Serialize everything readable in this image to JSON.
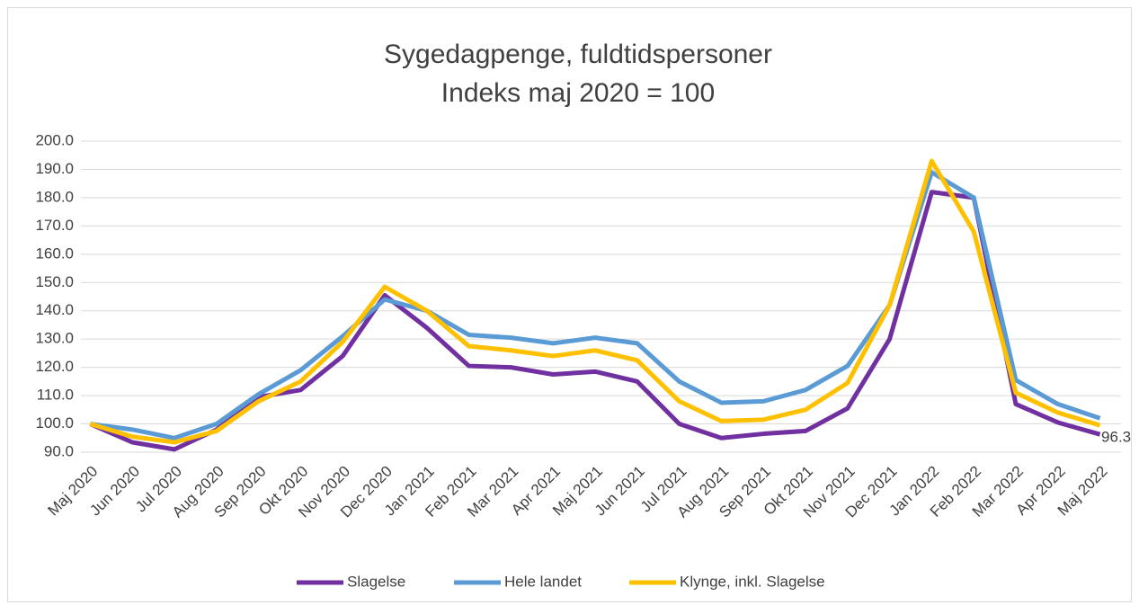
{
  "chart_data": {
    "type": "line",
    "title": [
      "Sygedagpenge, fuldtidspersoner",
      "Indeks maj 2020 = 100"
    ],
    "categories": [
      "Maj 2020",
      "Jun 2020",
      "Jul 2020",
      "Aug 2020",
      "Sep 2020",
      "Okt 2020",
      "Nov 2020",
      "Dec 2020",
      "Jan 2021",
      "Feb 2021",
      "Mar 2021",
      "Apr 2021",
      "Maj 2021",
      "Jun 2021",
      "Jul 2021",
      "Aug 2021",
      "Sep 2021",
      "Okt 2021",
      "Nov 2021",
      "Dec 2021",
      "Jan 2022",
      "Feb 2022",
      "Mar 2022",
      "Apr 2022",
      "Maj 2022"
    ],
    "series": [
      {
        "name": "Slagelse",
        "color": "#7030a0",
        "values": [
          100,
          93.5,
          91,
          98,
          109.5,
          112,
          124,
          145.5,
          134,
          120.5,
          120,
          117.5,
          118.5,
          115,
          100,
          95,
          96.5,
          97.5,
          105.5,
          130,
          182,
          180,
          107,
          100.5,
          96.3
        ],
        "value_labels": [
          null,
          null,
          null,
          null,
          null,
          null,
          null,
          null,
          null,
          null,
          null,
          null,
          null,
          null,
          null,
          null,
          null,
          null,
          null,
          null,
          null,
          null,
          null,
          null,
          "96.3"
        ]
      },
      {
        "name": "Hele landet",
        "color": "#5b9bd5",
        "values": [
          100,
          98,
          95,
          100,
          110.5,
          119,
          131,
          144,
          140,
          131.5,
          130.5,
          128.5,
          130.5,
          128.5,
          115,
          107.5,
          108,
          112,
          120.5,
          142,
          189,
          180,
          115.5,
          107,
          102
        ]
      },
      {
        "name": "Klynge, inkl. Slagelse",
        "color": "#ffc000",
        "values": [
          100,
          95.5,
          93.5,
          97.5,
          108,
          115,
          129,
          148.5,
          140,
          127.5,
          126,
          124,
          126,
          122.5,
          108,
          101,
          101.5,
          105,
          114.5,
          142,
          193,
          168,
          111,
          104,
          99.5
        ]
      }
    ],
    "ylim": [
      90,
      200
    ],
    "yticks": [
      {
        "value": 90,
        "label": "90.0"
      },
      {
        "value": 100,
        "label": "100.0"
      },
      {
        "value": 110,
        "label": "110.0"
      },
      {
        "value": 120,
        "label": "120.0"
      },
      {
        "value": 130,
        "label": "130.0"
      },
      {
        "value": 140,
        "label": "140.0"
      },
      {
        "value": 150,
        "label": "150.0"
      },
      {
        "value": 160,
        "label": "160.0"
      },
      {
        "value": 170,
        "label": "170.0"
      },
      {
        "value": 180,
        "label": "180.0"
      },
      {
        "value": 190,
        "label": "190.0"
      },
      {
        "value": 200,
        "label": "200.0"
      }
    ],
    "grid": true,
    "legend": "bottom"
  }
}
